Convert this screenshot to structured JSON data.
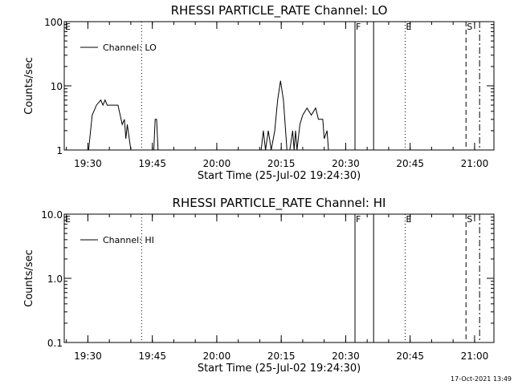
{
  "timestamp": "17-Oct-2021 13:49",
  "chart_data": [
    {
      "type": "line",
      "title": "RHESSI PARTICLE_RATE Channel: LO",
      "xlabel": "Start Time (25-Jul-02 19:24:30)",
      "ylabel": "Counts/sec",
      "y_scale": "log",
      "ylim": [
        1,
        100
      ],
      "xlim": [
        "19:24:30",
        "21:04:30"
      ],
      "xticks": [
        "19:30",
        "19:45",
        "20:00",
        "20:15",
        "20:30",
        "20:45",
        "21:00"
      ],
      "yticks": [
        "1",
        "10",
        "100"
      ],
      "grid": false,
      "legend_position": "top-left",
      "series": [
        {
          "name": "Channel: LO",
          "x": [
            "19:24:30",
            "19:30:10",
            "19:31:00",
            "19:32:00",
            "19:33:00",
            "19:33:30",
            "19:34:00",
            "19:34:30",
            "19:35:00",
            "19:36:00",
            "19:37:00",
            "19:38:00",
            "19:38:30",
            "19:38:50",
            "19:39:10",
            "19:40:00",
            "19:40:30",
            "19:45:20",
            "19:45:40",
            "19:46:00",
            "19:46:20",
            "19:46:40",
            "20:10:20",
            "20:10:50",
            "20:11:20",
            "20:12:00",
            "20:12:40",
            "20:13:30",
            "20:14:10",
            "20:14:50",
            "20:15:30",
            "20:16:20",
            "20:17:00",
            "20:17:40",
            "20:18:00",
            "20:18:20",
            "20:18:40",
            "20:19:20",
            "20:20:00",
            "20:21:00",
            "20:22:00",
            "20:23:00",
            "20:23:40",
            "20:24:40",
            "20:25:00",
            "20:25:40",
            "20:26:00",
            "21:04:30"
          ],
          "y": [
            1,
            1,
            3.5,
            5,
            6,
            5,
            6,
            5,
            5,
            5,
            5,
            2.5,
            3,
            1.5,
            2.5,
            1,
            1,
            1,
            3,
            3,
            1,
            1,
            1,
            2,
            1,
            2,
            1,
            2,
            6,
            12,
            6,
            1,
            1,
            2,
            1,
            2,
            1,
            2.5,
            3.5,
            4.5,
            3.5,
            4.5,
            3,
            3,
            1.5,
            2,
            1,
            1
          ]
        }
      ],
      "markers": [
        {
          "label": "",
          "time": "19:42:30",
          "style": "dotted"
        },
        {
          "label": "F",
          "time": "20:32:10",
          "style": "solid"
        },
        {
          "label": "",
          "time": "20:36:30",
          "style": "solid"
        },
        {
          "label": "E",
          "time": "20:43:50",
          "style": "dotted"
        },
        {
          "label": "S",
          "time": "20:58:00",
          "style": "dashed"
        },
        {
          "label": "",
          "time": "21:01:10",
          "style": "dashdot"
        }
      ],
      "edge_label": "E"
    },
    {
      "type": "line",
      "title": "RHESSI PARTICLE_RATE Channel: HI",
      "xlabel": "Start Time (25-Jul-02 19:24:30)",
      "ylabel": "Counts/sec",
      "y_scale": "log",
      "ylim": [
        0.1,
        10
      ],
      "xlim": [
        "19:24:30",
        "21:04:30"
      ],
      "xticks": [
        "19:30",
        "19:45",
        "20:00",
        "20:15",
        "20:30",
        "20:45",
        "21:00"
      ],
      "yticks": [
        "0.1",
        "1.0",
        "10.0"
      ],
      "grid": false,
      "legend_position": "top-left",
      "series": [
        {
          "name": "Channel: HI",
          "x": [],
          "y": []
        }
      ],
      "markers": [
        {
          "label": "",
          "time": "19:42:30",
          "style": "dotted"
        },
        {
          "label": "F",
          "time": "20:32:10",
          "style": "solid"
        },
        {
          "label": "",
          "time": "20:36:30",
          "style": "solid"
        },
        {
          "label": "E",
          "time": "20:43:50",
          "style": "dotted"
        },
        {
          "label": "S",
          "time": "20:58:00",
          "style": "dashed"
        },
        {
          "label": "",
          "time": "21:01:10",
          "style": "dashdot"
        }
      ],
      "edge_label": "E"
    }
  ]
}
